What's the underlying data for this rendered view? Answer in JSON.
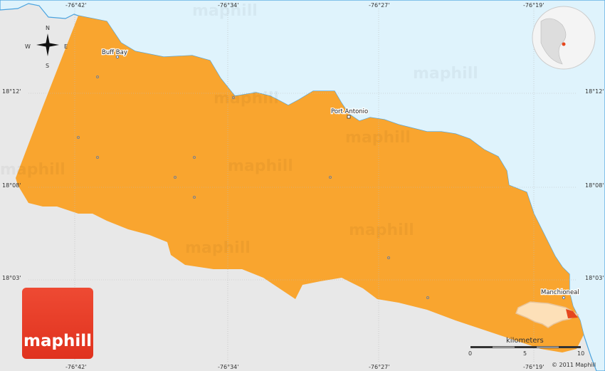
{
  "map": {
    "colors": {
      "region": "#f9a52f",
      "sea": "#dff3fc",
      "land": "#e8e8e8",
      "coast": "#4aa3df",
      "highlight": "#e5461d"
    },
    "longitude_labels": [
      "-76°42'",
      "-76°34'",
      "-76°27'",
      "-76°19'"
    ],
    "latitude_labels": [
      "18°12'",
      "18°08'",
      "18°03'"
    ],
    "places": [
      {
        "name": "Buff Bay"
      },
      {
        "name": "Port Antonio"
      },
      {
        "name": "Manchioneal"
      }
    ],
    "compass": {
      "n": "N",
      "s": "S",
      "e": "E",
      "w": "W"
    },
    "scale": {
      "unit": "kilometers",
      "ticks": [
        "0",
        "5",
        "10"
      ]
    },
    "copyright": "© 2011 Maphill",
    "watermark": "maphill",
    "logo": "maphill"
  }
}
